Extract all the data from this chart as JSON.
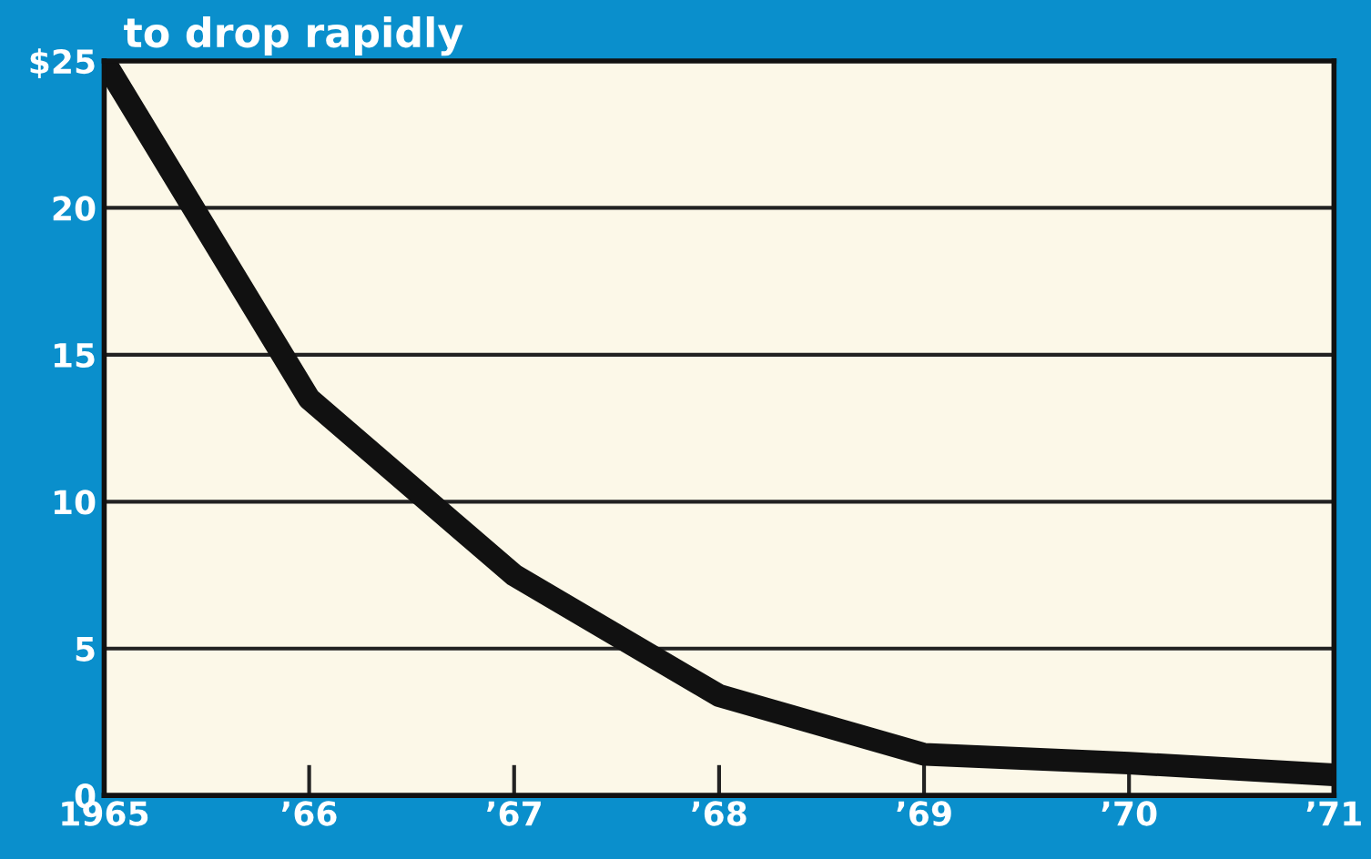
{
  "chart_data": {
    "type": "line",
    "title": "to drop rapidly",
    "x": [
      1965,
      1966,
      1967,
      1968,
      1969,
      1970,
      1971
    ],
    "series": [
      {
        "color": "#111111",
        "values": [
          25,
          13.5,
          7.5,
          3.4,
          1.4,
          1.1,
          0.7
        ]
      }
    ],
    "xlim": [
      1965,
      1971
    ],
    "xticks": [
      {
        "value": 1965,
        "label": "1965"
      },
      {
        "value": 1966,
        "label": "’66"
      },
      {
        "value": 1967,
        "label": "’67"
      },
      {
        "value": 1968,
        "label": "’68"
      },
      {
        "value": 1969,
        "label": "’69"
      },
      {
        "value": 1970,
        "label": "’70"
      },
      {
        "value": 1971,
        "label": "’71"
      }
    ],
    "ylim": [
      0,
      25
    ],
    "yticks": [
      0,
      5,
      10,
      15,
      20,
      {
        "value": 25,
        "label": "$25"
      }
    ],
    "grid": "y",
    "line_style": "solid"
  }
}
